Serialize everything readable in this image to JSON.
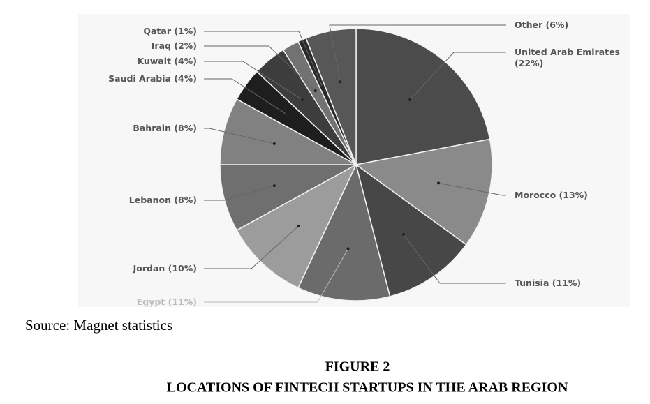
{
  "chart_data": {
    "type": "pie",
    "categories": [
      "United Arab Emirates",
      "Morocco",
      "Tunisia",
      "Egypt",
      "Jordan",
      "Lebanon",
      "Bahrain",
      "Saudi Arabia",
      "Kuwait",
      "Iraq",
      "Qatar",
      "Other"
    ],
    "values": [
      22,
      13,
      11,
      11,
      10,
      8,
      8,
      4,
      4,
      2,
      1,
      6
    ],
    "value_labels": [
      "(22%)",
      "(13%)",
      "(11%)",
      "(11%)",
      "(10%)",
      "(8%)",
      "(8%)",
      "(4%)",
      "(4%)",
      "(2%)",
      "(1%)",
      "(6%)"
    ],
    "colors": [
      "#4b4b4b",
      "#8a8a8a",
      "#474747",
      "#6b6b6b",
      "#9c9c9c",
      "#6f6f6f",
      "#818181",
      "#1e1e1e",
      "#3d3d3d",
      "#727272",
      "#2a2a2a",
      "#575757"
    ],
    "source": "Source: Magnet statistics",
    "figure_label": "FIGURE 2",
    "title": "LOCATIONS OF FINTECH STARTUPS IN THE ARAB REGION"
  }
}
